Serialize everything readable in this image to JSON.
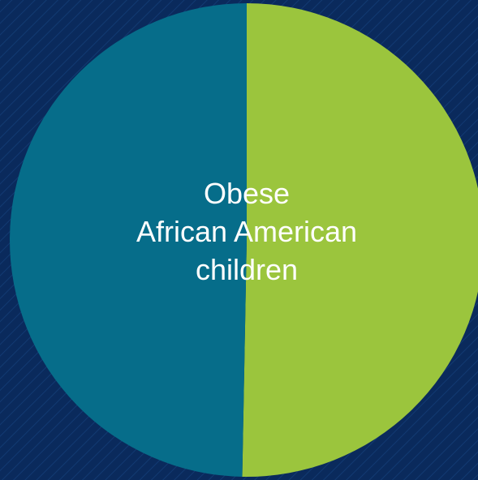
{
  "chart_data": {
    "type": "pie",
    "categories": [
      "",
      ""
    ],
    "values": [
      50.3,
      49.7
    ],
    "center_text": [
      "Obese",
      "African American",
      "children"
    ],
    "colors": [
      "#9bc53d",
      "#066d8a"
    ],
    "title": "",
    "legend": "none"
  },
  "background_color": "#0a2a5c"
}
